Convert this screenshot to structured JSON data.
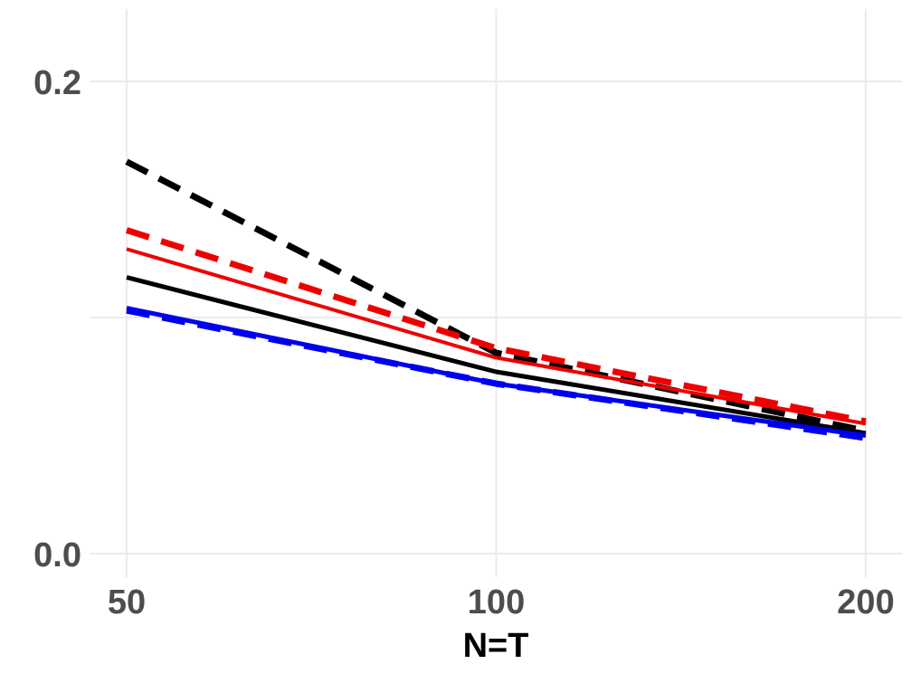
{
  "chart_data": {
    "type": "line",
    "title": "",
    "xlabel": "N=T",
    "ylabel": "",
    "x": [
      50,
      100,
      200
    ],
    "x_tick_labels": [
      "50",
      "100",
      "200"
    ],
    "y_ticks": [
      0.0,
      0.2
    ],
    "y_tick_labels": [
      "0.0",
      "0.2"
    ],
    "ylim": [
      0.0,
      0.23
    ],
    "grid": true,
    "legend": "none",
    "series": [
      {
        "values": [
          0.166,
          0.085,
          0.052
        ],
        "color": "#000000",
        "dash": "dashed"
      },
      {
        "values": [
          0.137,
          0.087,
          0.056
        ],
        "color": "#ee0000",
        "dash": "dashed"
      },
      {
        "values": [
          0.129,
          0.083,
          0.055
        ],
        "color": "#ee0000",
        "dash": "solid"
      },
      {
        "values": [
          0.117,
          0.077,
          0.051
        ],
        "color": "#000000",
        "dash": "solid"
      },
      {
        "values": [
          0.104,
          0.072,
          0.05
        ],
        "color": "#0000ee",
        "dash": "solid"
      },
      {
        "values": [
          0.103,
          0.072,
          0.049
        ],
        "color": "#0000ee",
        "dash": "dashed"
      }
    ]
  }
}
